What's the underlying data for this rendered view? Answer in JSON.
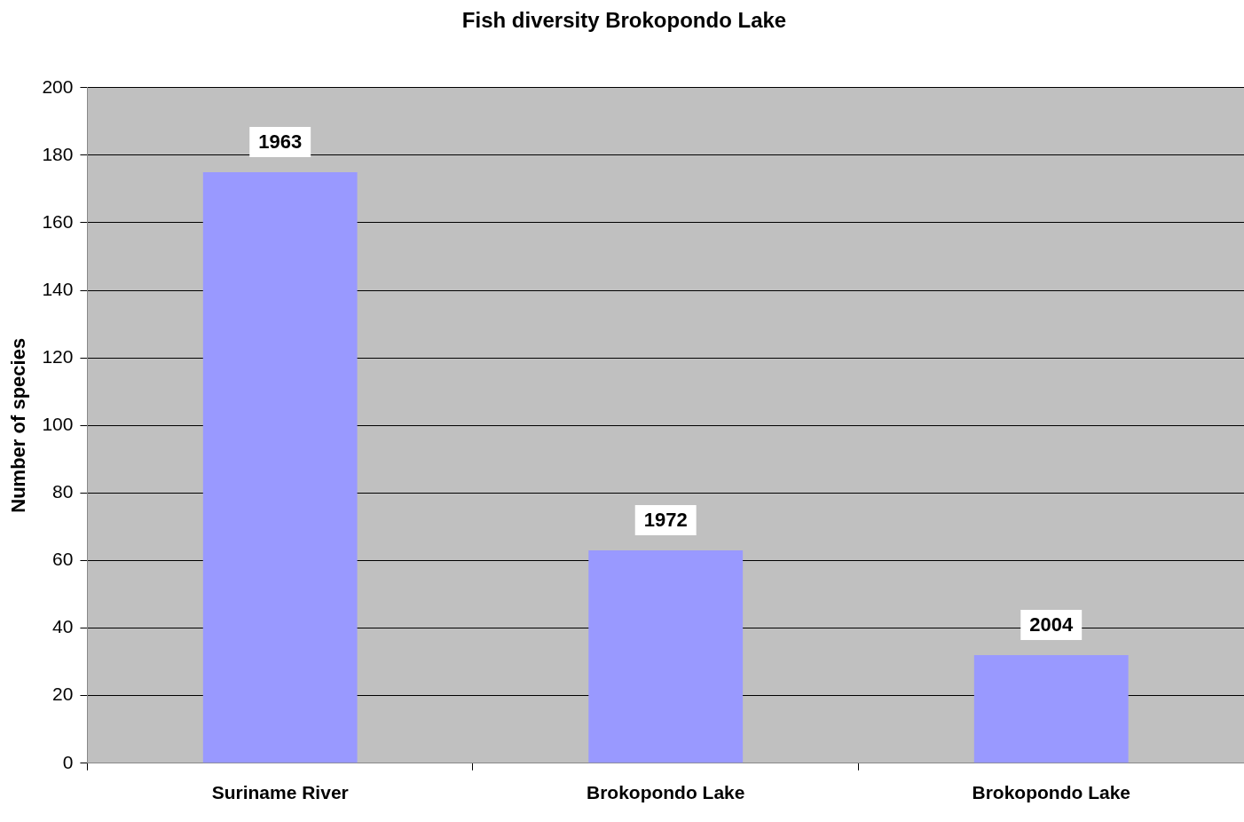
{
  "chart_data": {
    "type": "bar",
    "title": "Fish diversity Brokopondo Lake",
    "ylabel": "Number of species",
    "categories": [
      "Suriname River",
      "Brokopondo Lake",
      "Brokopondo Lake"
    ],
    "values": [
      175,
      63,
      32
    ],
    "color": "#9999ff",
    "annotations": [
      "1963",
      "1972",
      "2004"
    ],
    "ylim": [
      0,
      200
    ],
    "yticks": [
      0,
      20,
      40,
      60,
      80,
      100,
      120,
      140,
      160,
      180,
      200
    ],
    "grid": "y",
    "legend": false
  }
}
